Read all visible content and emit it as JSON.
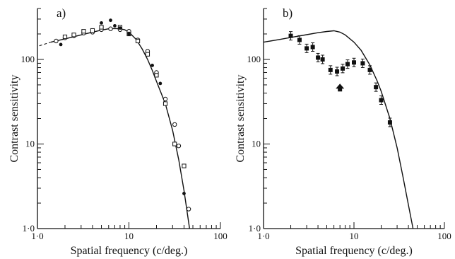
{
  "figure": {
    "charts": [
      "a",
      "b"
    ]
  },
  "chart_data": [
    {
      "type": "scatter",
      "panel_label": "a)",
      "title": "",
      "xlabel": "Spatial frequency (c/deg.)",
      "ylabel": "Contrast sensitivity",
      "xscale": "log",
      "yscale": "log",
      "xlim": [
        1,
        100
      ],
      "ylim": [
        1,
        400
      ],
      "x_tick_labels": [
        "1·0",
        "10",
        "100"
      ],
      "y_tick_labels": [
        "1·0",
        "10",
        "100"
      ],
      "series": [
        {
          "marker": "open-circle",
          "x": [
            1.6,
            2.0,
            2.5,
            3.2,
            4.0,
            5.0,
            6.3,
            8.0,
            10.0,
            12.5,
            16.0,
            20.0,
            25.0,
            31.6,
            35.0,
            45.0
          ],
          "y": [
            165,
            180,
            190,
            205,
            210,
            225,
            230,
            225,
            215,
            170,
            125,
            70,
            34,
            17,
            9.5,
            1.7
          ]
        },
        {
          "marker": "open-square",
          "x": [
            2.0,
            2.5,
            3.2,
            4.0,
            5.0,
            8.0,
            10.0,
            12.5,
            16.0,
            20.0,
            25.0,
            31.6,
            40.0
          ],
          "y": [
            185,
            195,
            215,
            220,
            240,
            240,
            200,
            165,
            115,
            65,
            30,
            10,
            5.5
          ]
        },
        {
          "marker": "filled-circle",
          "x": [
            1.8,
            5.0,
            6.3,
            7.0,
            8.0,
            10.0,
            18.0,
            22.0,
            40.0
          ],
          "y": [
            150,
            270,
            290,
            250,
            235,
            200,
            85,
            52,
            2.6
          ]
        }
      ],
      "fit_curve": {
        "style": "solid",
        "x": [
          1.4,
          2,
          3,
          4,
          5,
          6,
          7,
          8,
          9,
          10,
          12,
          14,
          16,
          18,
          20,
          25,
          30,
          35,
          40,
          46
        ],
        "y": [
          160,
          175,
          195,
          210,
          222,
          230,
          232,
          230,
          224,
          210,
          172,
          132,
          100,
          74,
          55,
          30,
          14.5,
          6.5,
          2.8,
          1.0
        ]
      },
      "extrapolation": {
        "style": "dashed",
        "x": [
          1.05,
          1.4
        ],
        "y": [
          145,
          160
        ]
      }
    },
    {
      "type": "scatter",
      "panel_label": "b)",
      "title": "",
      "xlabel": "Spatial frequency (c/deg.)",
      "ylabel": "Contrast sensitivity",
      "xscale": "log",
      "yscale": "log",
      "xlim": [
        1,
        100
      ],
      "ylim": [
        1,
        400
      ],
      "x_tick_labels": [
        "1·0",
        "10",
        "100"
      ],
      "y_tick_labels": [
        "1·0",
        "10",
        "100"
      ],
      "series": [
        {
          "marker": "filled-square",
          "x": [
            2.0,
            2.5,
            3.0,
            3.5,
            4.0,
            4.5,
            5.5,
            6.5,
            7.5,
            8.5,
            10.0,
            12.5,
            15.0,
            17.5,
            20.0,
            25.0
          ],
          "y": [
            190,
            170,
            135,
            140,
            105,
            100,
            75,
            72,
            78,
            88,
            92,
            90,
            75,
            47,
            33,
            18
          ]
        }
      ],
      "arrow": {
        "x": 7.0,
        "y": 46,
        "direction": "up"
      },
      "fit_curve": {
        "style": "solid",
        "x": [
          1,
          1.5,
          2,
          3,
          4,
          5,
          6,
          7,
          8,
          10,
          12,
          15,
          18,
          20,
          25,
          30,
          35,
          40,
          45
        ],
        "y": [
          160,
          172,
          182,
          196,
          207,
          214,
          218,
          210,
          195,
          160,
          128,
          86,
          56,
          42,
          20,
          9,
          4,
          1.9,
          1.0
        ]
      }
    }
  ]
}
